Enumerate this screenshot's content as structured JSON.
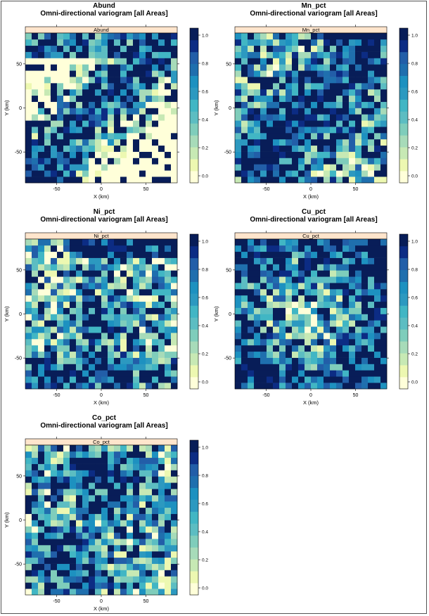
{
  "charts": [
    {
      "name": "Abund",
      "title": "Abund",
      "subtitle": "Omni-directional variogram [all Areas]",
      "strip": "Abund",
      "xlabel": "X (km)",
      "ylabel": "Y (km)"
    },
    {
      "name": "Mn_pct",
      "title": "Mn_pct",
      "subtitle": "Omni-directional variogram [all Areas]",
      "strip": "Mn_pct",
      "xlabel": "X (km)",
      "ylabel": "Y (km)"
    },
    {
      "name": "Ni_pct",
      "title": "Ni_pct",
      "subtitle": "Omni-directional variogram [all Areas]",
      "strip": "Ni_pct",
      "xlabel": "X (km)",
      "ylabel": "Y (km)"
    },
    {
      "name": "Cu_pct",
      "title": "Cu_pct",
      "subtitle": "Omni-directional variogram [all Areas]",
      "strip": "Cu_pct",
      "xlabel": "X (km)",
      "ylabel": "Y (km)"
    },
    {
      "name": "Co_pct",
      "title": "Co_pct",
      "subtitle": "Omni-directional variogram [all Areas]",
      "strip": "Co_pct",
      "xlabel": "X (km)",
      "ylabel": "Y (km)"
    }
  ],
  "chart_data": [
    {
      "type": "heatmap",
      "panel": "Abund",
      "xlim": [
        -85,
        85
      ],
      "ylim": [
        -85,
        85
      ],
      "grid_size": 24,
      "x_ticks": [
        -50,
        0,
        50
      ],
      "y_ticks": [
        -50,
        0,
        50
      ],
      "colorbar_ticks": [
        0.0,
        0.2,
        0.4,
        0.6,
        0.8,
        1.0
      ],
      "colorbar_range": [
        -0.05,
        1.05
      ],
      "pattern": "diagonal band of high values from lower-left to upper-right"
    },
    {
      "type": "heatmap",
      "panel": "Mn_pct",
      "xlim": [
        -85,
        85
      ],
      "ylim": [
        -85,
        85
      ],
      "grid_size": 24,
      "x_ticks": [
        -50,
        0,
        50
      ],
      "y_ticks": [
        -50,
        0,
        50
      ],
      "colorbar_ticks": [
        0.0,
        0.2,
        0.4,
        0.6,
        0.8,
        1.0
      ],
      "colorbar_range": [
        -0.05,
        1.05
      ],
      "pattern": "high values in lower-left, center and upper-right"
    },
    {
      "type": "heatmap",
      "panel": "Ni_pct",
      "xlim": [
        -85,
        85
      ],
      "ylim": [
        -85,
        85
      ],
      "grid_size": 24,
      "x_ticks": [
        -50,
        0,
        50
      ],
      "y_ticks": [
        -50,
        0,
        50
      ],
      "colorbar_ticks": [
        0.0,
        0.2,
        0.4,
        0.6,
        0.8,
        1.0
      ],
      "colorbar_range": [
        -0.05,
        1.05
      ],
      "pattern": "high values along top and bottom edges"
    },
    {
      "type": "heatmap",
      "panel": "Cu_pct",
      "xlim": [
        -85,
        85
      ],
      "ylim": [
        -85,
        85
      ],
      "grid_size": 24,
      "x_ticks": [
        -50,
        0,
        50
      ],
      "y_ticks": [
        -50,
        0,
        50
      ],
      "colorbar_ticks": [
        0.0,
        0.2,
        0.4,
        0.6,
        0.8,
        1.0
      ],
      "colorbar_range": [
        -0.05,
        1.05
      ],
      "pattern": "low center, high at top and bottom edges"
    },
    {
      "type": "heatmap",
      "panel": "Co_pct",
      "xlim": [
        -85,
        85
      ],
      "ylim": [
        -85,
        85
      ],
      "grid_size": 24,
      "x_ticks": [
        -50,
        0,
        50
      ],
      "y_ticks": [
        -50,
        0,
        50
      ],
      "colorbar_ticks": [
        0.0,
        0.2,
        0.4,
        0.6,
        0.8,
        1.0
      ],
      "colorbar_range": [
        -0.05,
        1.05
      ],
      "pattern": "high values in upper-center and lower-left"
    }
  ],
  "colors": {
    "palette": [
      "#ffffd9",
      "#edf8b1",
      "#c7e9b4",
      "#a7dbb9",
      "#7fcdbb",
      "#5cbdc2",
      "#41b6c4",
      "#2c99c0",
      "#1d91c0",
      "#1f6fae",
      "#225ea8",
      "#0c2c84",
      "#081d58"
    ],
    "strip": "#ffe5cc",
    "frame": "#555555"
  }
}
